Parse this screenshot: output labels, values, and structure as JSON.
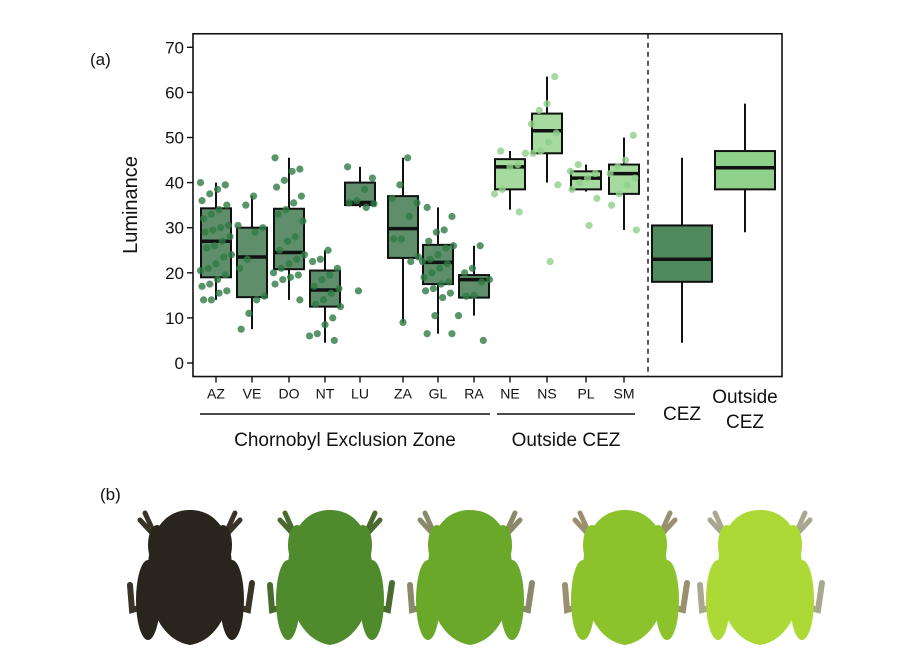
{
  "panel_labels": {
    "a": "(a)",
    "b": "(b)"
  },
  "chart_data": {
    "type": "box",
    "ylabel": "Luminance",
    "ylim": [
      -3,
      73
    ],
    "yticks": [
      0,
      10,
      20,
      30,
      40,
      50,
      60,
      70
    ],
    "groups": [
      {
        "label": "Chornobyl Exclusion Zone",
        "sites": [
          "AZ",
          "VE",
          "DO",
          "NT",
          "LU",
          "ZA",
          "GL",
          "RA"
        ]
      },
      {
        "label": "Outside CEZ",
        "sites": [
          "NE",
          "NS",
          "PL",
          "SM"
        ]
      }
    ],
    "colors": {
      "cez_box": "#5e8f6a",
      "cez_point": "#2e7a45",
      "out_box": "#a6dba0",
      "out_point": "#8fd08a",
      "cez_summary": "#4f8a5e",
      "out_summary": "#8fd18a"
    },
    "sites": [
      {
        "name": "AZ",
        "zone": "cez",
        "whisker": [
          14,
          40
        ],
        "q1": 19,
        "median": 27,
        "q3": 34.3,
        "points": [
          40,
          39.5,
          38.5,
          37.5,
          36,
          35,
          34,
          33,
          32,
          30.5,
          30,
          29.5,
          29,
          28,
          27,
          26,
          25.5,
          24,
          23.5,
          22,
          21,
          20.5,
          19.5,
          18.5,
          17.5,
          17,
          16,
          15.5,
          14,
          14
        ]
      },
      {
        "name": "VE",
        "zone": "cez",
        "whisker": [
          7.5,
          37
        ],
        "q1": 14.6,
        "median": 23.5,
        "q3": 30,
        "points": [
          37,
          35,
          30.5,
          30,
          29,
          23,
          21,
          14.8,
          14,
          11,
          7.5
        ]
      },
      {
        "name": "DO",
        "zone": "cez",
        "whisker": [
          14,
          45.5
        ],
        "q1": 20.8,
        "median": 24.5,
        "q3": 34.2,
        "points": [
          45.5,
          43,
          42.5,
          40.5,
          39,
          37,
          35.5,
          34,
          33,
          31.5,
          28,
          27,
          25,
          24,
          23,
          22,
          21,
          20,
          19.5,
          19,
          18.5,
          17.5,
          14
        ]
      },
      {
        "name": "NT",
        "zone": "cez",
        "whisker": [
          4.5,
          25
        ],
        "q1": 12.5,
        "median": 16.2,
        "q3": 20.5,
        "points": [
          25,
          23,
          22.5,
          21,
          19.5,
          18.5,
          17,
          16.5,
          15.5,
          14,
          13,
          12.5,
          10,
          8.5,
          6.5,
          6,
          5
        ]
      },
      {
        "name": "LU",
        "zone": "cez",
        "whisker": [
          34.5,
          43.5
        ],
        "q1": 35,
        "median": 35.6,
        "q3": 40,
        "points": [
          43.5,
          41,
          38.5,
          36,
          35.5,
          35.3,
          34.5,
          16
        ]
      },
      {
        "name": "ZA",
        "zone": "cez",
        "whisker": [
          9,
          45.5
        ],
        "q1": 23.3,
        "median": 29.8,
        "q3": 37,
        "points": [
          45.5,
          39.5,
          36.5,
          35.5,
          32.5,
          27.5,
          27.5,
          23.5,
          22.5,
          9
        ]
      },
      {
        "name": "GL",
        "zone": "cez",
        "whisker": [
          6.5,
          34.5
        ],
        "q1": 17.5,
        "median": 22.3,
        "q3": 26.2,
        "points": [
          34.5,
          32.5,
          29.5,
          29,
          27,
          26,
          25.5,
          24,
          23,
          22.5,
          22,
          21,
          20,
          19,
          18,
          17.5,
          16.5,
          16,
          15.5,
          14.5,
          10.5,
          6.5,
          6.5
        ]
      },
      {
        "name": "RA",
        "zone": "cez",
        "whisker": [
          10.5,
          26
        ],
        "q1": 14.5,
        "median": 18.5,
        "q3": 19.5,
        "points": [
          26,
          21,
          20,
          18.5,
          18,
          15,
          14.8,
          10.5,
          5
        ]
      },
      {
        "name": "NE",
        "zone": "out",
        "whisker": [
          34,
          47
        ],
        "q1": 38.5,
        "median": 43.5,
        "q3": 45.2,
        "points": [
          47,
          46.5,
          44,
          43.5,
          38.5,
          37.5,
          33.5
        ]
      },
      {
        "name": "NS",
        "zone": "out",
        "whisker": [
          40,
          63.5
        ],
        "q1": 46.5,
        "median": 51.5,
        "q3": 55.3,
        "points": [
          63.5,
          57.5,
          56,
          53,
          51,
          49,
          47,
          46.5,
          39.5,
          22.5
        ]
      },
      {
        "name": "PL",
        "zone": "out",
        "whisker": [
          38,
          44
        ],
        "q1": 38.5,
        "median": 41,
        "q3": 42.5,
        "points": [
          44,
          42.5,
          42,
          41,
          40,
          38.5,
          36.5,
          30.5
        ]
      },
      {
        "name": "SM",
        "zone": "out",
        "whisker": [
          29.5,
          50
        ],
        "q1": 37.5,
        "median": 42,
        "q3": 44,
        "points": [
          50.5,
          45,
          43.5,
          42,
          41,
          39.5,
          37.5,
          35,
          29.5
        ]
      }
    ],
    "summary": [
      {
        "name": "CEZ",
        "label_lines": [
          "CEZ"
        ],
        "zone": "cez",
        "whisker": [
          4.5,
          45.5
        ],
        "q1": 18,
        "median": 23,
        "q3": 30.5
      },
      {
        "name": "Outside CEZ",
        "label_lines": [
          "Outside",
          "CEZ"
        ],
        "zone": "out",
        "whisker": [
          29,
          57.5
        ],
        "q1": 38.5,
        "median": 43.3,
        "q3": 47
      }
    ]
  },
  "photos": [
    {
      "name": "frog-darkest",
      "body": "#2a251c",
      "limb": "#3a3428"
    },
    {
      "name": "frog-dark-green",
      "body": "#4f8a2c",
      "limb": "#4a6a30"
    },
    {
      "name": "frog-green",
      "body": "#6aa82a",
      "limb": "#8a8a6a"
    },
    {
      "name": "frog-light-green",
      "body": "#8cc22c",
      "limb": "#9a9070"
    },
    {
      "name": "frog-lightest",
      "body": "#acd936",
      "limb": "#a8a890"
    }
  ]
}
